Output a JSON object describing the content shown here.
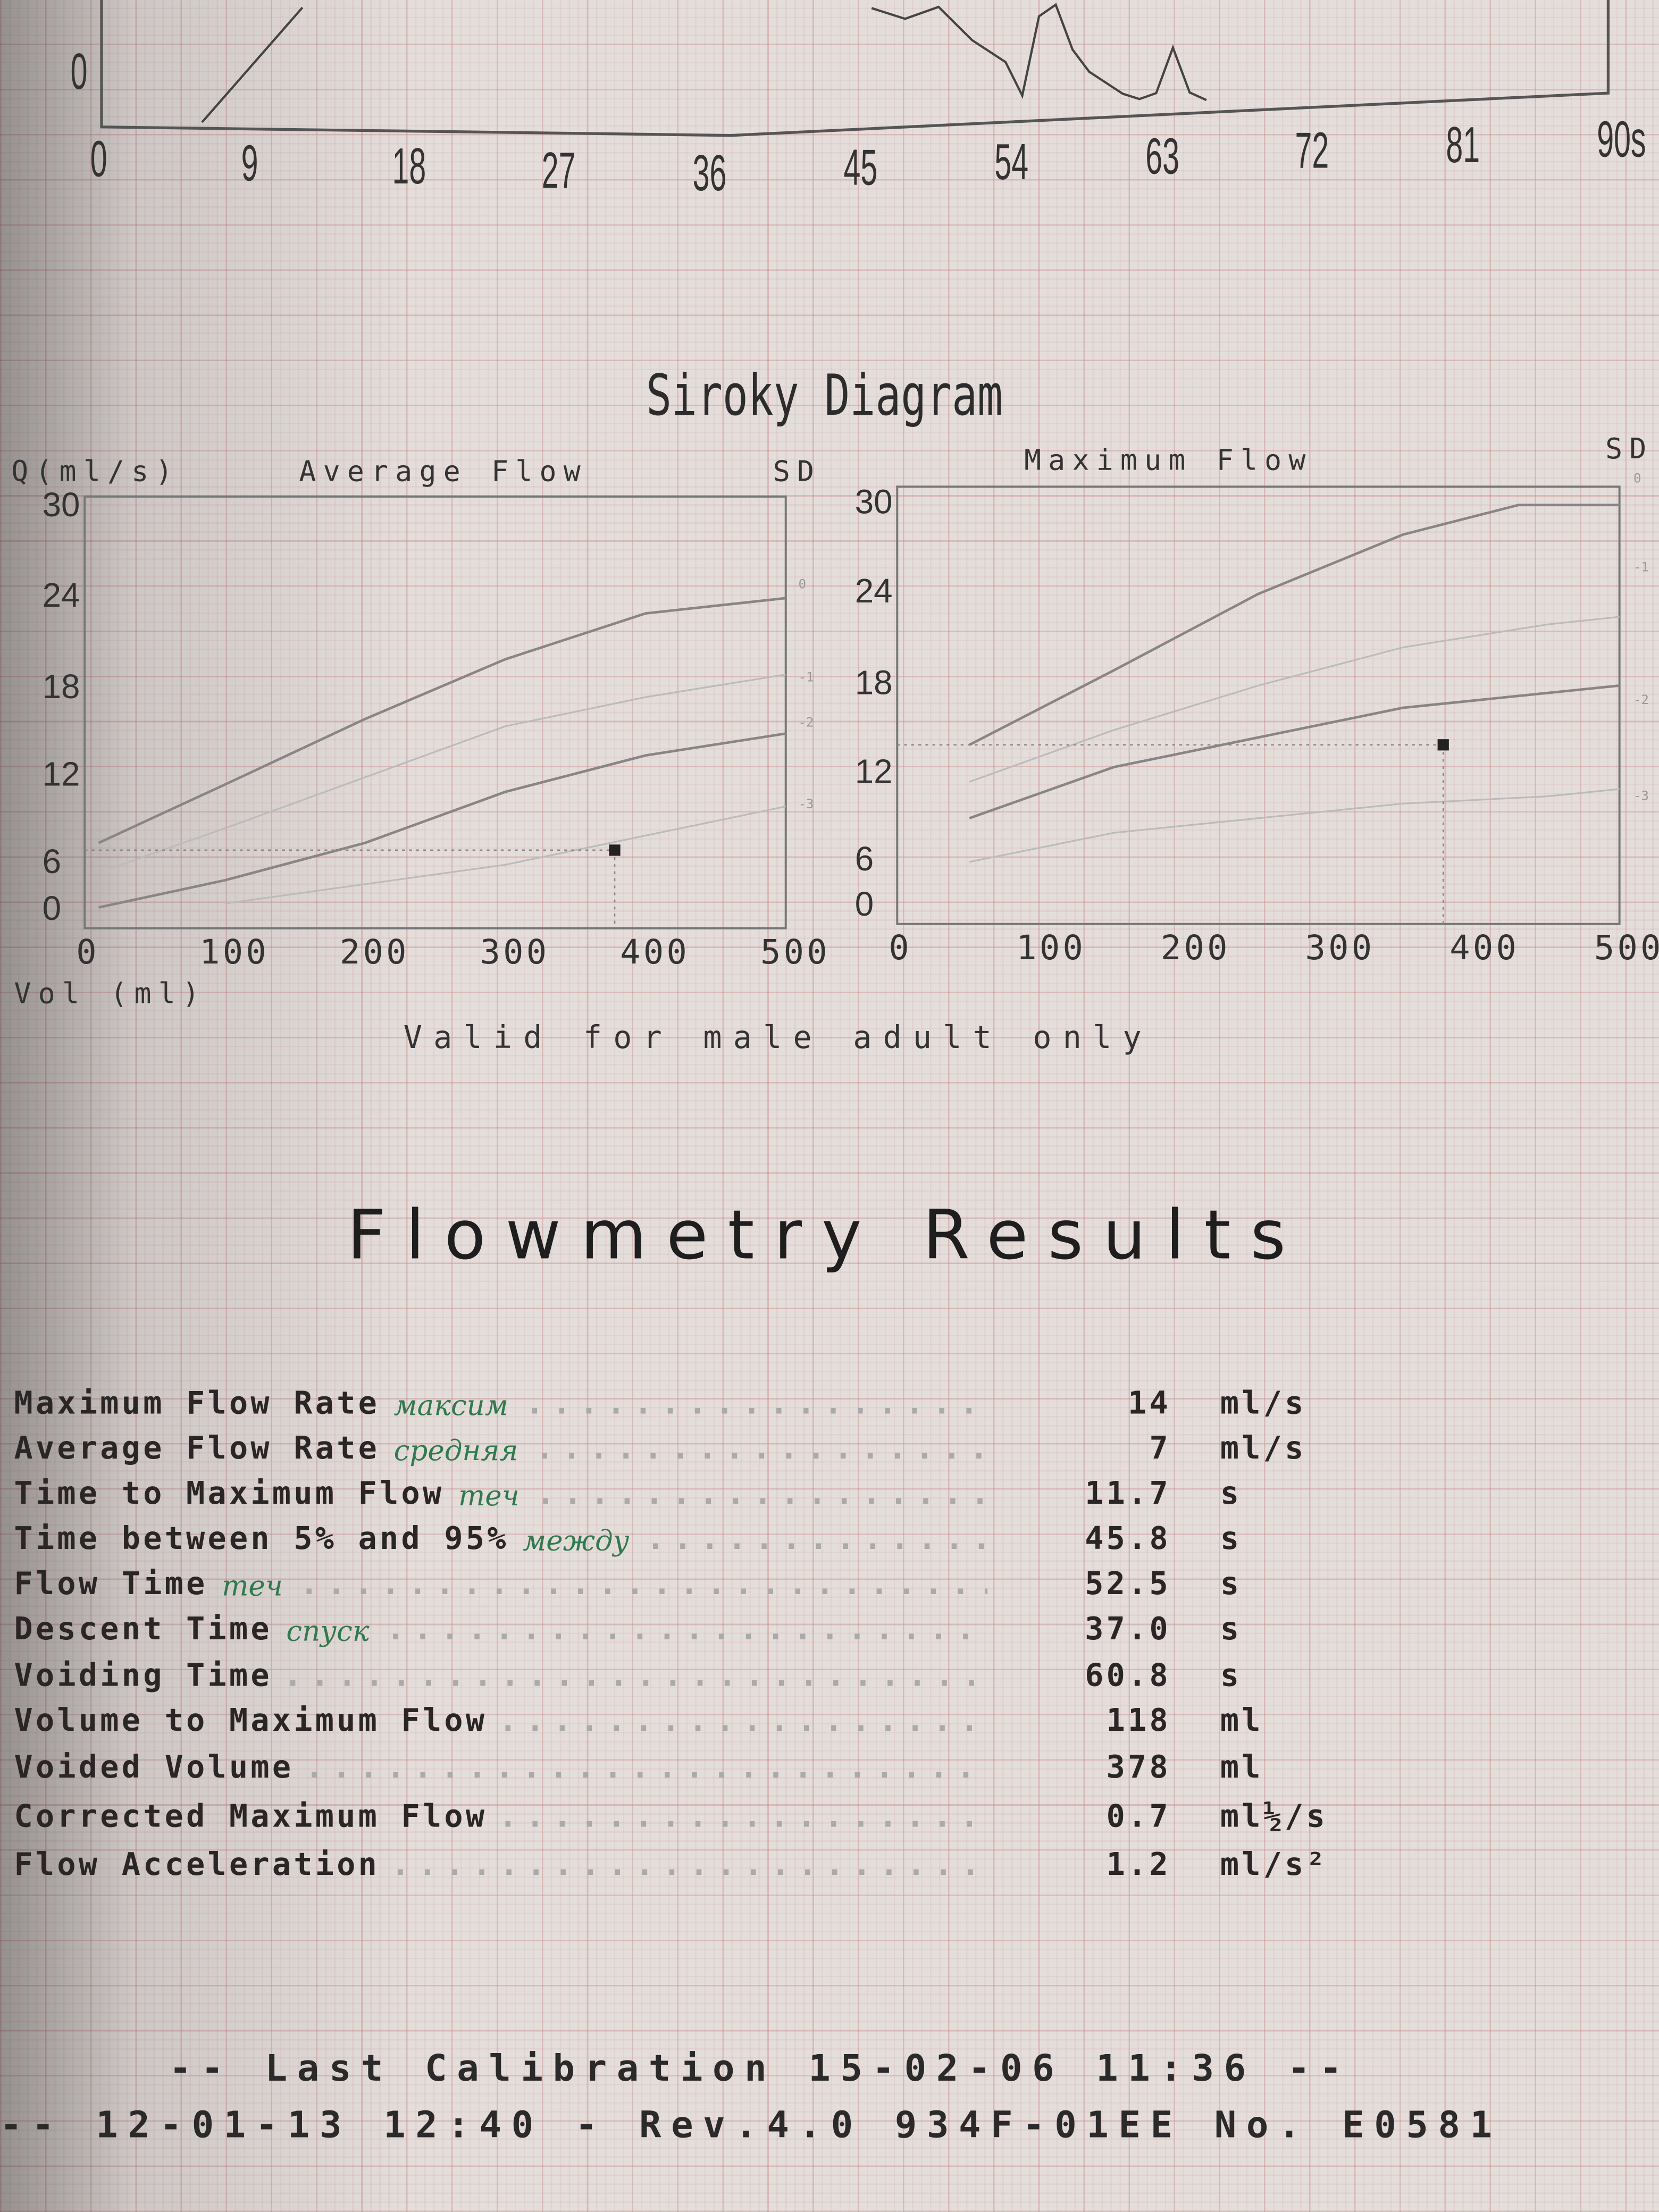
{
  "chart_data": [
    {
      "type": "line",
      "xlabel": "",
      "x_ticks": [
        "0",
        "9",
        "18",
        "27",
        "36",
        "45",
        "54",
        "63",
        "72",
        "81",
        "90s"
      ],
      "y_ticks_visible": [
        "0"
      ],
      "xlim": [
        0,
        90
      ],
      "series": [
        {
          "x": [
            6,
            9,
            12
          ],
          "y": [
            0,
            5,
            10
          ]
        },
        {
          "x": [
            46,
            48,
            50,
            52,
            54,
            55,
            56,
            57,
            58,
            59,
            60,
            61,
            62,
            63,
            64,
            65,
            66
          ],
          "y": [
            9,
            8,
            9,
            6,
            4,
            1,
            8,
            9,
            5,
            3,
            2,
            1,
            0.5,
            1,
            5,
            1,
            0.3
          ]
        }
      ]
    },
    {
      "type": "line",
      "title": "Average Flow",
      "ylabel": "Q(ml/s)",
      "xlabel": "Vol (ml)",
      "right_label": "SD",
      "x_ticks": [
        "0",
        "100",
        "200",
        "300",
        "400",
        "500"
      ],
      "y_ticks": [
        "0",
        "6",
        "12",
        "18",
        "24",
        "30"
      ],
      "xlim": [
        0,
        500
      ],
      "ylim": [
        0,
        30
      ],
      "sd_labels": [
        "0",
        "-1",
        "-2",
        "-3"
      ],
      "series": [
        {
          "name": "0",
          "x": [
            10,
            100,
            200,
            300,
            400,
            500
          ],
          "y": [
            7.5,
            11.5,
            16,
            20,
            23,
            24
          ]
        },
        {
          "name": "-1",
          "x": [
            10,
            100,
            200,
            300,
            400,
            500
          ],
          "y": [
            5,
            8.5,
            12,
            15.5,
            17.5,
            19
          ]
        },
        {
          "name": "-2",
          "x": [
            10,
            100,
            200,
            300,
            400,
            500
          ],
          "y": [
            0.5,
            4,
            7.5,
            11,
            13.5,
            15
          ]
        },
        {
          "name": "-3",
          "x": [
            100,
            200,
            300,
            400,
            500
          ],
          "y": [
            1,
            3.5,
            6,
            8,
            10
          ]
        }
      ],
      "point": {
        "x": 378,
        "y": 7
      }
    },
    {
      "type": "line",
      "title": "Maximum Flow",
      "right_label": "SD",
      "x_ticks": [
        "0",
        "100",
        "200",
        "300",
        "400",
        "500"
      ],
      "y_ticks": [
        "0",
        "6",
        "12",
        "18",
        "24",
        "30"
      ],
      "xlim": [
        0,
        500
      ],
      "ylim": [
        0,
        30
      ],
      "sd_labels": [
        "0",
        "-1",
        "-2",
        "-3"
      ],
      "series": [
        {
          "name": "0",
          "x": [
            50,
            150,
            250,
            350,
            430,
            500
          ],
          "y": [
            14,
            19,
            24,
            28,
            30,
            30
          ]
        },
        {
          "name": "-1",
          "x": [
            50,
            150,
            250,
            350,
            450,
            500
          ],
          "y": [
            11.5,
            15,
            18,
            20.5,
            22,
            22.5
          ]
        },
        {
          "name": "-2",
          "x": [
            50,
            150,
            250,
            350,
            450,
            500
          ],
          "y": [
            9,
            12.5,
            14.5,
            16.5,
            17.5,
            18
          ]
        },
        {
          "name": "-3",
          "x": [
            50,
            150,
            250,
            350,
            450,
            500
          ],
          "y": [
            6,
            8,
            9,
            10,
            10.5,
            11
          ]
        }
      ],
      "point": {
        "x": 378,
        "y": 14
      }
    }
  ],
  "siroky_title": "Siroky Diagram",
  "valid_note": "Valid for male adult only",
  "results_title": "Flowmetry Results",
  "results": [
    {
      "label": "Maximum Flow Rate",
      "value": "14",
      "unit": "ml/s",
      "note": "максим"
    },
    {
      "label": "Average Flow Rate",
      "value": "7",
      "unit": "ml/s",
      "note": "средняя"
    },
    {
      "label": "Time to Maximum Flow",
      "value": "11.7",
      "unit": "s",
      "note": "теч"
    },
    {
      "label": "Time between 5% and 95%",
      "value": "45.8",
      "unit": "s",
      "note": "между"
    },
    {
      "label": "Flow Time",
      "value": "52.5",
      "unit": "s",
      "note": "теч"
    },
    {
      "label": "Descent Time",
      "value": "37.0",
      "unit": "s",
      "note": "спуск"
    },
    {
      "label": "Voiding Time",
      "value": "60.8",
      "unit": "s",
      "note": ""
    },
    {
      "label": "Volume to Maximum Flow",
      "value": "118",
      "unit": "ml",
      "note": ""
    },
    {
      "label": "Voided Volume",
      "value": "378",
      "unit": "ml",
      "note": ""
    },
    {
      "label": "Corrected Maximum Flow",
      "value": "0.7",
      "unit": "ml½/s",
      "note": ""
    },
    {
      "label": "Flow Acceleration",
      "value": "1.2",
      "unit": "ml/s²",
      "note": ""
    }
  ],
  "footer": {
    "line1": "-- Last Calibration  15-02-06  11:36 --",
    "line2": "-- 12-01-13  12:40 - Rev.4.0 934F-01EE  No. E0581"
  },
  "colors": {
    "paper": "#e4dedb",
    "grid": "#c88c8c",
    "ink": "#2a2626",
    "pen": "#2f7a4e"
  }
}
